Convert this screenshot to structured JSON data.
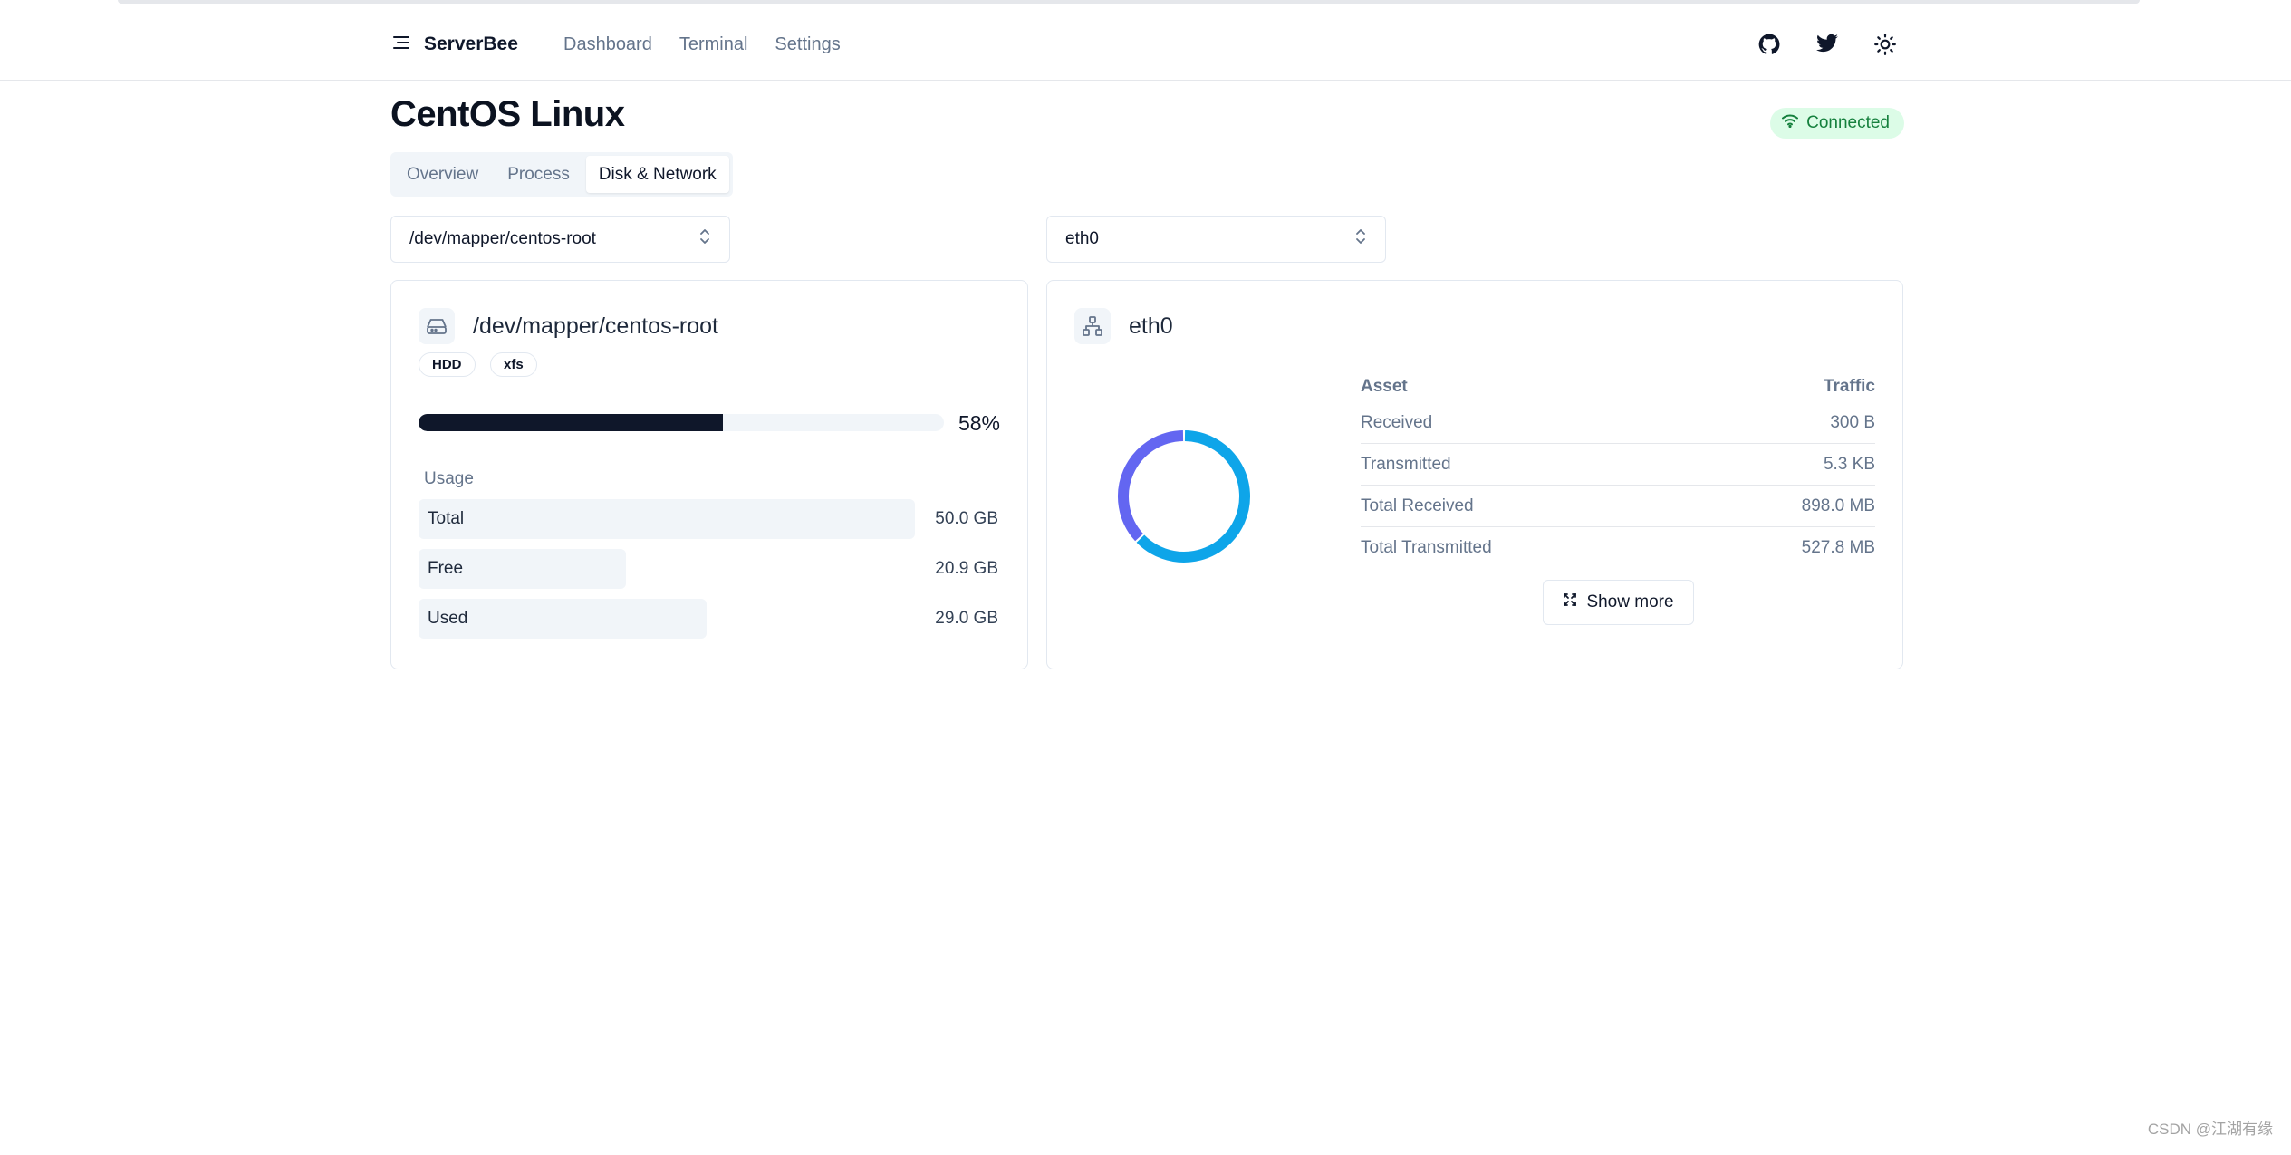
{
  "header": {
    "brand": "ServerBee",
    "nav": [
      "Dashboard",
      "Terminal",
      "Settings"
    ],
    "icons": [
      "github-icon",
      "twitter-icon",
      "sun-icon"
    ]
  },
  "page": {
    "title": "CentOS Linux",
    "status": "Connected",
    "tabs": [
      "Overview",
      "Process",
      "Disk & Network"
    ],
    "active_tab": "Disk & Network"
  },
  "selects": {
    "disk": "/dev/mapper/centos-root",
    "network": "eth0"
  },
  "disk_card": {
    "title": "/dev/mapper/centos-root",
    "tags": [
      "HDD",
      "xfs"
    ],
    "usage_fraction": 0.58,
    "usage_label": "58%",
    "usage_caption": "Usage",
    "rows": [
      {
        "name": "Total",
        "value": "50.0 GB",
        "fraction": 1.0
      },
      {
        "name": "Free",
        "value": "20.9 GB",
        "fraction": 0.418
      },
      {
        "name": "Used",
        "value": "29.0 GB",
        "fraction": 0.58
      }
    ]
  },
  "network_card": {
    "title": "eth0",
    "columns": [
      "Asset",
      "Traffic"
    ],
    "rows": [
      {
        "asset": "Received",
        "traffic": "300 B"
      },
      {
        "asset": "Transmitted",
        "traffic": "5.3 KB"
      },
      {
        "asset": "Total Received",
        "traffic": "898.0 MB"
      },
      {
        "asset": "Total Transmitted",
        "traffic": "527.8 MB"
      }
    ],
    "show_more": "Show more",
    "donut": {
      "segments": [
        {
          "name": "Total Received",
          "value": 898.0,
          "color": "#0ea5e9"
        },
        {
          "name": "Total Transmitted",
          "value": 527.8,
          "color": "#6366f1"
        }
      ]
    }
  },
  "colors": {
    "accent_dark": "#0f172a",
    "connected_bg": "#dcfce7",
    "connected_fg": "#15803d"
  },
  "watermark": "CSDN @江湖有缘"
}
